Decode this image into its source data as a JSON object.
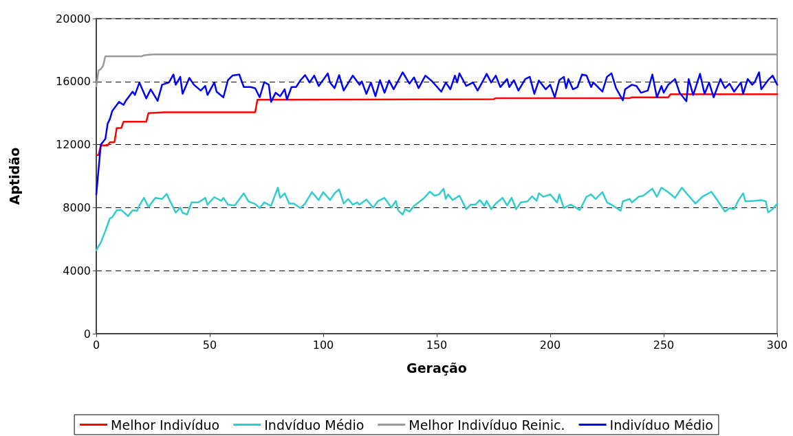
{
  "chart_data": {
    "type": "line",
    "xlabel": "Geração",
    "ylabel": "Aptidão",
    "xlim": [
      0,
      300
    ],
    "xticks": [
      0,
      50,
      100,
      150,
      200,
      250,
      300
    ],
    "ylim": [
      0,
      20000
    ],
    "yticks": [
      0,
      4000,
      8000,
      12000,
      16000,
      20000
    ],
    "grid": "y",
    "legend": "bottom",
    "marker": "none",
    "line_style": "solid",
    "series": [
      {
        "name": "Melhor Indivíduo",
        "color": "#ff0000",
        "x": [
          0,
          1,
          2,
          5,
          6,
          8,
          9,
          11,
          12,
          22,
          23,
          30,
          70,
          71,
          175,
          176,
          235,
          236,
          252,
          253,
          300
        ],
        "values": [
          11340,
          11340,
          11950,
          11950,
          12150,
          12150,
          13050,
          13050,
          13450,
          13450,
          14000,
          14050,
          14050,
          14850,
          14880,
          14950,
          14950,
          15000,
          15000,
          15200,
          15200
        ]
      },
      {
        "name": "Indvíduo Médio",
        "color": "#33cccc",
        "x": [
          0,
          2,
          4,
          6,
          7,
          9,
          11,
          14,
          16,
          18,
          19,
          21,
          23,
          26,
          29,
          31,
          35,
          37,
          38,
          40,
          42,
          45,
          48,
          49,
          52,
          55,
          56,
          58,
          61,
          65,
          67,
          70,
          72,
          74,
          77,
          80,
          81,
          83,
          85,
          87,
          90,
          92,
          95,
          98,
          100,
          103,
          105,
          107,
          109,
          111,
          113,
          115,
          116,
          119,
          122,
          124,
          127,
          130,
          132,
          133,
          135,
          136,
          138,
          140,
          144,
          147,
          149,
          151,
          153,
          154,
          155,
          157,
          160,
          163,
          165,
          167,
          169,
          171,
          172,
          174,
          176,
          179,
          181,
          183,
          185,
          187,
          190,
          192,
          194,
          195,
          197,
          200,
          203,
          204,
          206,
          209,
          210,
          213,
          216,
          218,
          220,
          223,
          225,
          227,
          231,
          232,
          235,
          236,
          239,
          241,
          245,
          247,
          249,
          252,
          255,
          258,
          260,
          264,
          267,
          271,
          274,
          277,
          279,
          281,
          283,
          285,
          286,
          290,
          293,
          295,
          296,
          298,
          300
        ],
        "values": [
          5300,
          5790,
          6520,
          7320,
          7390,
          7830,
          7850,
          7460,
          7830,
          7800,
          8140,
          8620,
          8040,
          8620,
          8550,
          8870,
          7680,
          8000,
          7680,
          7560,
          8330,
          8330,
          8620,
          8190,
          8670,
          8430,
          8620,
          8190,
          8140,
          8910,
          8400,
          8230,
          7970,
          8330,
          8110,
          9270,
          8620,
          8910,
          8260,
          8260,
          7970,
          8260,
          8980,
          8480,
          8980,
          8480,
          8910,
          9160,
          8260,
          8550,
          8190,
          8330,
          8190,
          8520,
          8000,
          8400,
          8620,
          8000,
          8430,
          7830,
          7560,
          7900,
          7750,
          8110,
          8550,
          9010,
          8760,
          8840,
          9200,
          8550,
          8840,
          8480,
          8760,
          7900,
          8190,
          8190,
          8480,
          8110,
          8430,
          7900,
          8260,
          8620,
          8140,
          8620,
          7900,
          8330,
          8400,
          8720,
          8430,
          8910,
          8690,
          8840,
          8330,
          8840,
          7970,
          8190,
          8110,
          7850,
          8690,
          8840,
          8550,
          8980,
          8330,
          8190,
          7800,
          8400,
          8550,
          8330,
          8690,
          8760,
          9200,
          8690,
          9270,
          8980,
          8620,
          9270,
          8910,
          8260,
          8690,
          9010,
          8400,
          7750,
          7970,
          7900,
          8480,
          8910,
          8400,
          8430,
          8480,
          8400,
          7700,
          7900,
          8260
        ]
      },
      {
        "name": "Melhor Indivíduo Reinic.",
        "color": "#999999",
        "x": [
          0,
          1,
          2,
          3,
          4,
          20,
          21,
          25,
          300
        ],
        "values": [
          15700,
          16700,
          16800,
          17000,
          17600,
          17600,
          17670,
          17720,
          17720
        ]
      },
      {
        "name": "Indivíduo Médio",
        "color": "#0000ff",
        "x": [
          0,
          1,
          2,
          4,
          5,
          6,
          7,
          10,
          12,
          13,
          16,
          17,
          19,
          22,
          24,
          27,
          29,
          32,
          34,
          35,
          37,
          38,
          41,
          43,
          46,
          48,
          49,
          52,
          53,
          56,
          58,
          60,
          63,
          65,
          68,
          70,
          72,
          74,
          76,
          77,
          79,
          81,
          83,
          84,
          86,
          88,
          90,
          92,
          94,
          96,
          98,
          102,
          103,
          105,
          107,
          109,
          113,
          116,
          117,
          119,
          121,
          123,
          125,
          127,
          129,
          131,
          135,
          138,
          140,
          142,
          145,
          148,
          152,
          154,
          156,
          158,
          159,
          160,
          163,
          166,
          168,
          170,
          172,
          174,
          176,
          178,
          181,
          182,
          184,
          186,
          189,
          191,
          193,
          195,
          198,
          200,
          202,
          204,
          206,
          207,
          208,
          210,
          212,
          214,
          216,
          218,
          219,
          223,
          225,
          227,
          229,
          232,
          233,
          236,
          238,
          240,
          243,
          245,
          247,
          249,
          250,
          252,
          255,
          257,
          260,
          261,
          263,
          266,
          268,
          270,
          272,
          275,
          277,
          279,
          281,
          284,
          285,
          287,
          289,
          290,
          292,
          293,
          296,
          298,
          300
        ],
        "values": [
          8840,
          10430,
          12000,
          12360,
          13330,
          13620,
          14130,
          14710,
          14520,
          14780,
          15360,
          15150,
          15940,
          14930,
          15510,
          14780,
          15800,
          15940,
          16450,
          15800,
          16300,
          15220,
          16230,
          15800,
          15430,
          15720,
          15150,
          15940,
          15360,
          15000,
          16090,
          16380,
          16450,
          15650,
          15650,
          15580,
          15000,
          15970,
          15800,
          14710,
          15290,
          15070,
          15510,
          14860,
          15650,
          15650,
          16090,
          16410,
          15940,
          16380,
          15720,
          16520,
          15940,
          15580,
          16410,
          15430,
          16380,
          15800,
          16010,
          15220,
          15940,
          15070,
          16090,
          15290,
          16070,
          15510,
          16590,
          15870,
          16260,
          15580,
          16380,
          16010,
          15360,
          15940,
          15510,
          16380,
          15940,
          16520,
          15720,
          15940,
          15430,
          15940,
          16490,
          15940,
          16380,
          15650,
          16160,
          15650,
          16090,
          15430,
          16160,
          16300,
          15220,
          16070,
          15510,
          15800,
          15000,
          16090,
          16300,
          15580,
          16160,
          15510,
          15650,
          16450,
          16380,
          15650,
          15940,
          15360,
          16300,
          16520,
          15580,
          14810,
          15510,
          15800,
          15720,
          15290,
          15430,
          16450,
          15000,
          15720,
          15290,
          15800,
          16160,
          15290,
          14750,
          16160,
          15150,
          16490,
          15220,
          15940,
          15000,
          16160,
          15580,
          15870,
          15360,
          15940,
          15220,
          16160,
          15800,
          15940,
          16590,
          15510,
          16090,
          16380,
          15800
        ]
      }
    ]
  }
}
